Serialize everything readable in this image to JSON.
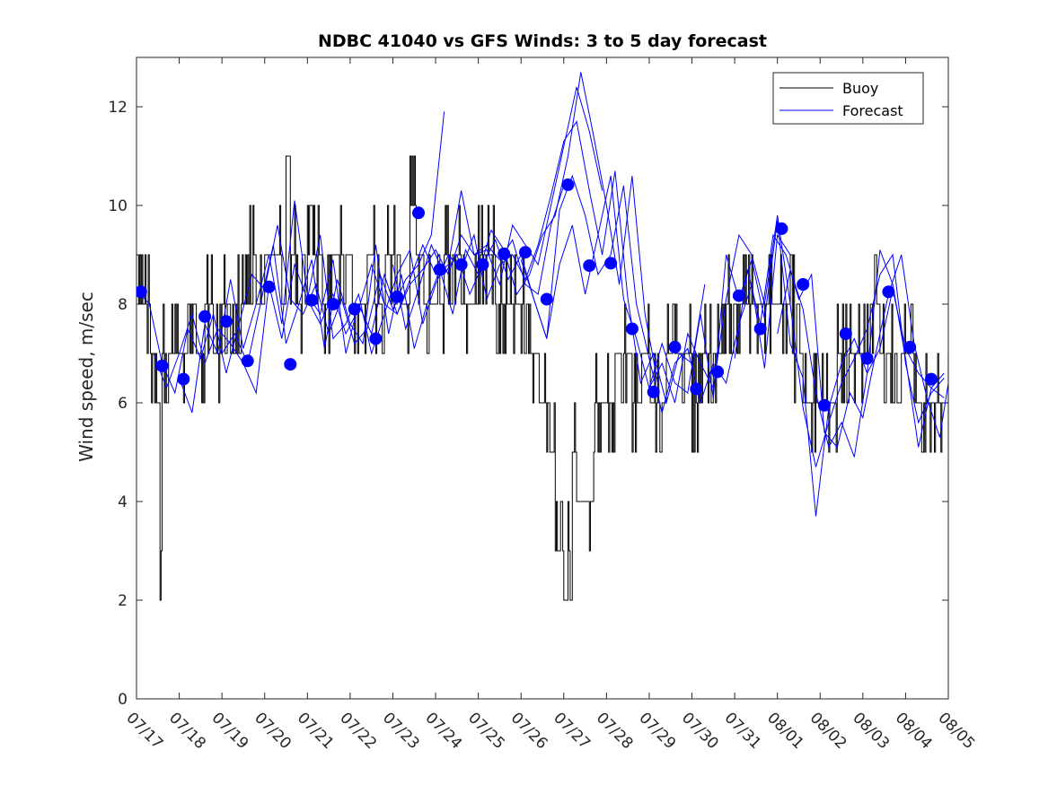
{
  "chart_data": {
    "type": "line",
    "title": "NDBC 41040 vs GFS Winds: 3 to 5 day forecast",
    "xlabel": "",
    "ylabel": "Wind speed, m/sec",
    "ylim": [
      0,
      13
    ],
    "yticks": [
      0,
      2,
      4,
      6,
      8,
      10,
      12
    ],
    "xlim": [
      "07/17",
      "08/05"
    ],
    "xticks": [
      "07/17",
      "07/18",
      "07/19",
      "07/20",
      "07/21",
      "07/22",
      "07/23",
      "07/24",
      "07/25",
      "07/26",
      "07/27",
      "07/28",
      "07/29",
      "07/30",
      "07/31",
      "08/01",
      "08/02",
      "08/03",
      "08/04",
      "08/05"
    ],
    "grid": false,
    "legend": {
      "position": "top-right",
      "entries": [
        {
          "label": "Buoy",
          "color": "#000000"
        },
        {
          "label": "Forecast",
          "color": "#0000ff"
        }
      ]
    },
    "series": [
      {
        "name": "Buoy",
        "color": "#000000",
        "x_unit": "days since 07/17",
        "x": [
          0.0,
          0.1,
          0.2,
          0.3,
          0.4,
          0.5,
          0.55,
          0.6,
          0.7,
          0.8,
          0.9,
          1.0,
          1.2,
          1.4,
          1.6,
          1.8,
          2.0,
          2.2,
          2.4,
          2.6,
          2.8,
          3.0,
          3.2,
          3.4,
          3.5,
          3.6,
          3.8,
          4.0,
          4.2,
          4.4,
          4.6,
          4.8,
          5.0,
          5.2,
          5.4,
          5.6,
          5.8,
          6.0,
          6.2,
          6.4,
          6.6,
          6.8,
          7.0,
          7.2,
          7.4,
          7.6,
          7.8,
          8.0,
          8.2,
          8.4,
          8.6,
          8.8,
          9.0,
          9.2,
          9.4,
          9.6,
          9.8,
          9.9,
          10.0,
          10.1,
          10.2,
          10.3,
          10.5,
          10.7,
          10.8,
          11.0,
          11.2,
          11.4,
          11.6,
          11.8,
          12.0,
          12.2,
          12.4,
          12.6,
          12.8,
          13.0,
          13.2,
          13.4,
          13.6,
          13.8,
          14.0,
          14.2,
          14.4,
          14.6,
          14.8,
          15.0,
          15.2,
          15.4,
          15.6,
          15.8,
          16.0,
          16.2,
          16.4,
          16.6,
          16.8,
          17.0,
          17.2,
          17.4,
          17.6,
          17.8,
          18.0,
          18.2,
          18.4,
          18.6,
          18.8,
          19.0
        ],
        "values": [
          9,
          8,
          8,
          7,
          7,
          6,
          3,
          7,
          6,
          7,
          8,
          7,
          8,
          7,
          8,
          7,
          8,
          8,
          8,
          9,
          8,
          9,
          9,
          8,
          11,
          9,
          8,
          10,
          9,
          8,
          9,
          9,
          8,
          8,
          9,
          8,
          9,
          9,
          8,
          10,
          9,
          8,
          8,
          9,
          9,
          8,
          8,
          9,
          9,
          8,
          8,
          8,
          8,
          7,
          6,
          6,
          4,
          3,
          2,
          3,
          5,
          4,
          4,
          6,
          6,
          6,
          7,
          7,
          6,
          7,
          6,
          6,
          7,
          7,
          7,
          6,
          7,
          7,
          7,
          8,
          8,
          8,
          8,
          8,
          8,
          8,
          8,
          7,
          6,
          6,
          6,
          6,
          7,
          7,
          7,
          7,
          8,
          7,
          7,
          7,
          7,
          6,
          6,
          6,
          6,
          6
        ]
      }
    ],
    "forecast_runs": [
      {
        "x": [
          0.0,
          0.3,
          0.6,
          0.9,
          1.2,
          1.5,
          1.8,
          2.1,
          2.4,
          2.7,
          3.0,
          3.3,
          3.6,
          3.9,
          4.2,
          4.5,
          4.8,
          5.1,
          5.4,
          5.7,
          6.0,
          6.3,
          6.6,
          6.9,
          7.2
        ],
        "values": [
          8.3,
          8.0,
          6.8,
          6.2,
          7.5,
          6.9,
          7.8,
          6.6,
          7.6,
          8.6,
          8.3,
          9.6,
          8.1,
          7.8,
          8.4,
          7.4,
          8.1,
          7.2,
          7.5,
          8.6,
          7.9,
          8.5,
          8.8,
          9.4,
          11.9
        ]
      },
      {
        "x": [
          0.4,
          0.7,
          1.0,
          1.3,
          1.6,
          1.9,
          2.2,
          2.5,
          2.8,
          3.1,
          3.4,
          3.7,
          4.0,
          4.3,
          4.6,
          4.9,
          5.2,
          5.5,
          5.8,
          6.1,
          6.4,
          6.7,
          7.0,
          7.3,
          7.6,
          7.9,
          8.2,
          8.5,
          8.8,
          9.1,
          9.4,
          9.7,
          10.0
        ],
        "values": [
          7.0,
          6.3,
          7.0,
          7.8,
          6.8,
          7.5,
          7.2,
          6.8,
          6.2,
          8.4,
          7.3,
          8.8,
          8.1,
          7.6,
          8.2,
          7.4,
          7.9,
          8.8,
          8.0,
          7.8,
          8.4,
          8.7,
          9.1,
          8.6,
          9.4,
          9.0,
          9.2,
          8.9,
          9.3,
          8.4,
          8.2,
          9.6,
          10.4
        ]
      },
      {
        "x": [
          1.0,
          1.3,
          1.6,
          1.9,
          2.2,
          2.5,
          2.8,
          3.1,
          3.4,
          3.7,
          4.0,
          4.3,
          4.6,
          4.9,
          5.2,
          5.5,
          5.8,
          6.1,
          6.4,
          6.7,
          7.0,
          7.3,
          7.6,
          7.9,
          8.2,
          8.5,
          8.8,
          9.1,
          9.4,
          9.7,
          10.0,
          10.3,
          10.6,
          10.9
        ],
        "values": [
          6.5,
          5.8,
          7.6,
          7.0,
          8.5,
          7.1,
          8.0,
          9.0,
          7.6,
          10.1,
          8.2,
          7.8,
          8.9,
          7.0,
          8.0,
          7.4,
          8.6,
          7.8,
          8.5,
          9.2,
          8.6,
          8.8,
          10.3,
          9.0,
          9.1,
          8.4,
          9.6,
          9.2,
          8.8,
          10.0,
          11.2,
          12.4,
          11.5,
          10.3
        ]
      },
      {
        "x": [
          2.0,
          2.3,
          2.6,
          2.9,
          3.2,
          3.5,
          3.8,
          4.1,
          4.4,
          4.7,
          5.0,
          5.3,
          5.6,
          5.9,
          6.2,
          6.5,
          6.8,
          7.1,
          7.4,
          7.7,
          8.0,
          8.3,
          8.6,
          8.9,
          9.2,
          9.5,
          9.8,
          10.1,
          10.4,
          10.7,
          11.0,
          11.3,
          11.6,
          11.9,
          12.2
        ],
        "values": [
          7.0,
          7.4,
          6.8,
          8.0,
          9.2,
          7.2,
          8.0,
          8.9,
          7.1,
          8.5,
          7.6,
          7.2,
          9.2,
          7.4,
          8.6,
          7.1,
          8.0,
          8.7,
          7.8,
          9.1,
          8.6,
          9.5,
          9.1,
          8.2,
          8.6,
          9.4,
          9.8,
          11.0,
          12.7,
          11.4,
          10.0,
          8.4,
          10.6,
          7.8,
          6.4
        ]
      },
      {
        "x": [
          4.0,
          4.3,
          4.6,
          4.9,
          5.2,
          5.5,
          5.8,
          6.1,
          6.4,
          6.7,
          7.0,
          7.3,
          7.6,
          7.9,
          8.2,
          8.5,
          8.8,
          9.1,
          9.4,
          9.7,
          10.0,
          10.3,
          10.6,
          10.9,
          11.2,
          11.5,
          11.8,
          12.1,
          12.4,
          12.7,
          13.0,
          13.3
        ],
        "values": [
          8.1,
          9.4,
          7.3,
          7.6,
          8.2,
          7.0,
          7.8,
          8.6,
          9.1,
          7.6,
          8.4,
          9.0,
          8.7,
          9.4,
          8.1,
          8.8,
          9.0,
          8.5,
          9.2,
          10.2,
          11.3,
          11.7,
          10.3,
          9.0,
          10.7,
          8.1,
          6.4,
          7.0,
          6.0,
          7.0,
          6.8,
          8.4
        ]
      },
      {
        "x": [
          6.0,
          6.3,
          6.6,
          6.9,
          7.2,
          7.5,
          7.8,
          8.1,
          8.4,
          8.7,
          9.0,
          9.3,
          9.6,
          9.9,
          10.2,
          10.5,
          10.8,
          11.1,
          11.4,
          11.7,
          12.0,
          12.3,
          12.6,
          12.9,
          13.2,
          13.5,
          13.8,
          14.1,
          14.4,
          14.7,
          15.0,
          15.3
        ],
        "values": [
          8.8,
          7.5,
          8.3,
          9.2,
          8.6,
          9.0,
          8.2,
          8.8,
          9.3,
          8.5,
          9.0,
          8.1,
          7.3,
          9.9,
          10.6,
          9.8,
          8.6,
          9.0,
          10.4,
          8.0,
          6.9,
          5.8,
          6.8,
          7.1,
          6.0,
          6.8,
          6.4,
          7.6,
          8.4,
          6.7,
          9.4,
          9.0
        ]
      },
      {
        "x": [
          9.0,
          9.3,
          9.6,
          9.9,
          10.2,
          10.5,
          10.8,
          11.1,
          11.4,
          11.7,
          12.0,
          12.3,
          12.6,
          12.9,
          13.2,
          13.5,
          13.8,
          14.1,
          14.4,
          14.7,
          15.0,
          15.3,
          15.6,
          15.9,
          16.2,
          16.5,
          16.8,
          17.1,
          17.4,
          17.7,
          18.0,
          18.3,
          18.6,
          18.9
        ],
        "values": [
          8.9,
          8.1,
          7.3,
          8.8,
          9.6,
          8.2,
          9.4,
          10.6,
          8.1,
          7.3,
          6.3,
          6.8,
          6.0,
          7.4,
          6.8,
          6.3,
          8.1,
          9.4,
          9.0,
          8.0,
          9.8,
          8.0,
          5.9,
          4.7,
          5.6,
          6.4,
          6.9,
          7.5,
          8.6,
          9.0,
          6.8,
          5.6,
          6.2,
          6.5
        ]
      },
      {
        "x": [
          12.0,
          12.3,
          12.6,
          12.9,
          13.2,
          13.5,
          13.8,
          14.1,
          14.4,
          14.7,
          15.0,
          15.3,
          15.6,
          15.9,
          16.2,
          16.5,
          16.8,
          17.1,
          17.4,
          17.7,
          18.0,
          18.3,
          18.6,
          18.9
        ],
        "values": [
          6.3,
          7.2,
          6.4,
          6.2,
          7.8,
          6.1,
          9.0,
          8.1,
          8.9,
          7.7,
          9.7,
          7.2,
          6.5,
          3.7,
          5.9,
          6.8,
          7.3,
          6.6,
          9.1,
          8.4,
          6.9,
          5.1,
          6.3,
          6.1
        ]
      },
      {
        "x": [
          14.0,
          14.3,
          14.6,
          14.9,
          15.2,
          15.5,
          15.8,
          16.1,
          16.4,
          16.7,
          17.0,
          17.3,
          17.6,
          17.9,
          18.2,
          18.5,
          18.8,
          19.0
        ],
        "values": [
          6.9,
          8.7,
          7.6,
          9.4,
          9.0,
          8.1,
          8.6,
          5.4,
          5.1,
          6.2,
          5.7,
          7.0,
          8.2,
          9.0,
          7.2,
          6.1,
          5.3,
          6.4
        ]
      },
      {
        "x": [
          15.0,
          15.3,
          15.6,
          15.9,
          16.2,
          16.5,
          16.8,
          17.1,
          17.4,
          17.7,
          18.0,
          18.3,
          18.6,
          18.9
        ],
        "values": [
          7.4,
          8.7,
          7.9,
          6.2,
          5.1,
          5.6,
          4.9,
          6.6,
          7.1,
          8.3,
          7.1,
          6.6,
          6.3,
          6.6
        ]
      }
    ],
    "forecast_points": {
      "x": [
        0.1,
        0.6,
        1.1,
        1.6,
        2.1,
        2.6,
        3.1,
        3.6,
        4.1,
        4.6,
        5.1,
        5.6,
        6.1,
        6.6,
        7.1,
        7.6,
        8.1,
        8.6,
        9.1,
        9.6,
        10.1,
        10.6,
        11.1,
        11.6,
        12.1,
        12.6,
        13.1,
        13.6,
        14.1,
        14.6,
        15.1,
        15.6,
        16.1,
        16.6,
        17.1,
        17.6,
        18.1,
        18.6
      ],
      "values": [
        8.25,
        6.75,
        6.48,
        7.75,
        7.65,
        6.85,
        8.35,
        6.78,
        8.08,
        8.0,
        7.9,
        7.3,
        8.15,
        9.85,
        8.7,
        8.8,
        8.8,
        9.02,
        9.05,
        8.1,
        10.42,
        8.78,
        8.83,
        7.5,
        6.22,
        7.13,
        6.28,
        6.63,
        8.17,
        7.5,
        9.53,
        8.4,
        5.95,
        7.4,
        6.9,
        8.25,
        7.13,
        6.48
      ]
    }
  }
}
